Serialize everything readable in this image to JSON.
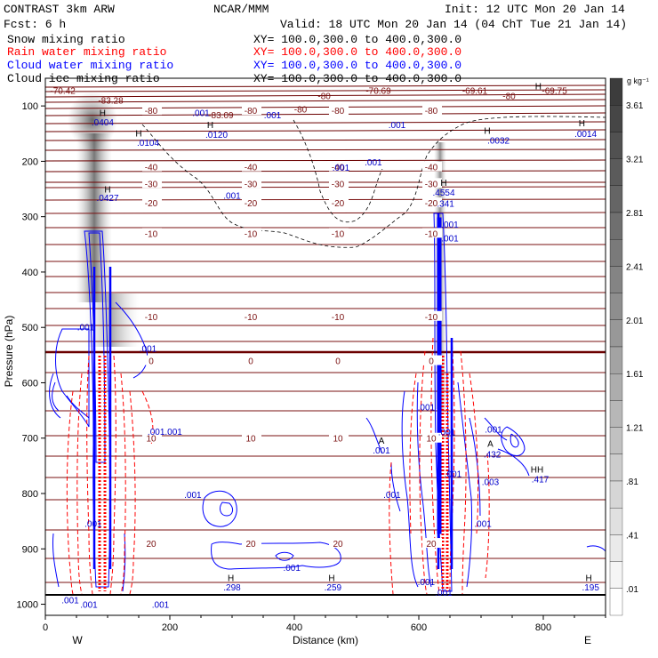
{
  "header": {
    "model": "CONTRAST  3km ARW",
    "center": "NCAR/MMM",
    "init": "Init: 12 UTC Mon 20 Jan 14",
    "fcst": "Fcst:     6 h",
    "valid": "Valid: 18 UTC Mon 20 Jan 14 (04 ChT Tue 21 Jan 14)"
  },
  "legend": [
    {
      "label": "Snow mixing ratio",
      "xy": "XY= 100.0,300.0 to 400.0,300.0",
      "color": "#000000"
    },
    {
      "label": "Rain water mixing ratio",
      "xy": "XY= 100.0,300.0 to 400.0,300.0",
      "color": "#ff0000"
    },
    {
      "label": "Cloud water mixing ratio",
      "xy": "XY= 100.0,300.0 to 400.0,300.0",
      "color": "#0000ff"
    },
    {
      "label": "Cloud ice mixing ratio",
      "xy": "XY= 100.0,300.0 to 400.0,300.0",
      "color": "#000000"
    }
  ],
  "chart_data": {
    "type": "contour",
    "xlabel": "Distance (km)",
    "ylabel": "Pressure (hPa)",
    "xlim": [
      0,
      900
    ],
    "ylim": [
      1020,
      50
    ],
    "xticks": [
      0,
      200,
      400,
      600,
      800
    ],
    "yticks": [
      100,
      200,
      300,
      400,
      500,
      600,
      700,
      800,
      900,
      1000
    ],
    "x_end_labels": {
      "west": "W",
      "east": "E"
    },
    "colorbar": {
      "unit": "g kg⁻¹",
      "labels": [
        "3.61",
        "3.21",
        "2.81",
        "2.41",
        "2.01",
        "1.61",
        "1.21",
        ".81",
        ".41",
        ".01"
      ]
    },
    "temperature_contours": [
      {
        "label": "-10",
        "p": 330
      },
      {
        "label": "-20",
        "p": 275
      },
      {
        "label": "-30",
        "p": 240
      },
      {
        "label": "-40",
        "p": 210
      },
      {
        "label": "-80",
        "p": 108
      },
      {
        "label": "-10",
        "p": 480
      },
      {
        "label": "0",
        "p": 560
      },
      {
        "label": "10",
        "p": 700
      },
      {
        "label": "20",
        "p": 890
      }
    ],
    "annotations": [
      {
        "text": "-70.42",
        "x": 28,
        "p": 78
      },
      {
        "text": "-83.28",
        "x": 105,
        "p": 96
      },
      {
        "text": "H",
        "x": 92,
        "p": 118
      },
      {
        "text": ".0404",
        "x": 92,
        "p": 135
      },
      {
        "text": ".001",
        "x": 250,
        "p": 118
      },
      {
        "text": "-83.09",
        "x": 282,
        "p": 122
      },
      {
        "text": ".001",
        "x": 365,
        "p": 122
      },
      {
        "text": "-80",
        "x": 410,
        "p": 112
      },
      {
        "text": "-80",
        "x": 448,
        "p": 88
      },
      {
        "text": "-70.69",
        "x": 535,
        "p": 78
      },
      {
        "text": "-69.61",
        "x": 690,
        "p": 78
      },
      {
        "text": "-80",
        "x": 745,
        "p": 88
      },
      {
        "text": "H",
        "x": 792,
        "p": 70
      },
      {
        "text": "-69.75",
        "x": 818,
        "p": 78
      },
      {
        "text": ".001",
        "x": 565,
        "p": 140
      },
      {
        "text": "H",
        "x": 265,
        "p": 140
      },
      {
        "text": ".0120",
        "x": 275,
        "p": 158
      },
      {
        "text": "H",
        "x": 150,
        "p": 155
      },
      {
        "text": ".0104",
        "x": 165,
        "p": 172
      },
      {
        "text": "H",
        "x": 710,
        "p": 150
      },
      {
        "text": ".0032",
        "x": 728,
        "p": 168
      },
      {
        "text": "H",
        "x": 862,
        "p": 137
      },
      {
        "text": ".0014",
        "x": 868,
        "p": 156
      },
      {
        "text": ".001",
        "x": 475,
        "p": 217
      },
      {
        "text": ".001",
        "x": 527,
        "p": 207
      },
      {
        "text": ".001",
        "x": 300,
        "p": 268
      },
      {
        "text": "H",
        "x": 100,
        "p": 256
      },
      {
        "text": ".0427",
        "x": 100,
        "p": 272
      },
      {
        "text": "H",
        "x": 640,
        "p": 244
      },
      {
        "text": ".4554",
        "x": 640,
        "p": 262
      },
      {
        "text": ".341",
        "x": 643,
        "p": 282
      },
      {
        "text": ".001",
        "x": 650,
        "p": 320
      },
      {
        "text": ".001",
        "x": 650,
        "p": 345
      },
      {
        "text": ".001",
        "x": 65,
        "p": 505
      },
      {
        "text": ".001",
        "x": 165,
        "p": 544
      },
      {
        "text": ".001.001",
        "x": 192,
        "p": 694
      },
      {
        "text": "A",
        "x": 540,
        "p": 710
      },
      {
        "text": ".001",
        "x": 540,
        "p": 728
      },
      {
        "text": ".001",
        "x": 612,
        "p": 650
      },
      {
        "text": ".001",
        "x": 645,
        "p": 695
      },
      {
        "text": ".001",
        "x": 720,
        "p": 690
      },
      {
        "text": "A",
        "x": 715,
        "p": 716
      },
      {
        "text": ".432",
        "x": 718,
        "p": 735
      },
      {
        "text": "HH",
        "x": 790,
        "p": 762
      },
      {
        "text": ".417",
        "x": 795,
        "p": 780
      },
      {
        "text": ".003",
        "x": 715,
        "p": 785
      },
      {
        "text": ".001",
        "x": 237,
        "p": 808
      },
      {
        "text": ".001",
        "x": 557,
        "p": 808
      },
      {
        "text": ".001",
        "x": 77,
        "p": 860
      },
      {
        "text": ".001",
        "x": 703,
        "p": 860
      },
      {
        "text": ".001",
        "x": 396,
        "p": 940
      },
      {
        "text": "H",
        "x": 298,
        "p": 958
      },
      {
        "text": ".298",
        "x": 300,
        "p": 975
      },
      {
        "text": "H",
        "x": 460,
        "p": 958
      },
      {
        "text": ".259",
        "x": 462,
        "p": 975
      },
      {
        "text": "H",
        "x": 873,
        "p": 958
      },
      {
        "text": ".195",
        "x": 876,
        "p": 975
      },
      {
        "text": ".001",
        "x": 40,
        "p": 998
      },
      {
        "text": ".001",
        "x": 70,
        "p": 1006
      },
      {
        "text": ".001",
        "x": 185,
        "p": 1006
      },
      {
        "text": ".001",
        "x": 640,
        "p": 985
      },
      {
        "text": ".001",
        "x": 612,
        "p": 965
      },
      {
        "text": ".001",
        "x": 655,
        "p": 770
      }
    ]
  }
}
